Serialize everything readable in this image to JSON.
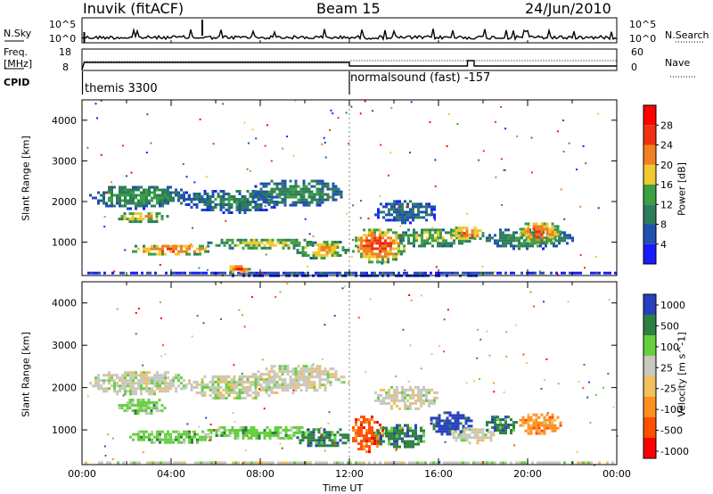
{
  "header": {
    "station": "Inuvik (fitACF)",
    "beam": "Beam 15",
    "date": "24/Jun/2010"
  },
  "summary": {
    "nsky_label": "N.Sky",
    "nsearch_label": "N.Search",
    "freq_label": "Freq.",
    "freq_unit": "[MHz]",
    "nave_label": "Nave",
    "cpid_label": "CPID",
    "nsky_ticks": [
      "10^5",
      "10^0"
    ],
    "nsearch_ticks": [
      "10^5",
      "10^0"
    ],
    "freq_ticks": [
      "18",
      "8"
    ],
    "nave_ticks": [
      "60",
      "0"
    ],
    "cpid_segments": [
      {
        "label": "themis 3300",
        "start": 0
      },
      {
        "label": "normalsound (fast) -157",
        "start": 12.0
      }
    ]
  },
  "colors": {
    "power": [
      "#1a1aff",
      "#2050b0",
      "#2e7d5a",
      "#3aa040",
      "#f0c830",
      "#f08020",
      "#f03010",
      "#ff0000"
    ],
    "velocity": [
      "#ff0000",
      "#ff5000",
      "#ff9020",
      "#f0c060",
      "#c8c8c0",
      "#66d040",
      "#2e8040",
      "#2840c0"
    ]
  },
  "chart_data": [
    {
      "type": "heatmap",
      "name": "power",
      "xlabel": "",
      "ylabel": "Slant Range [km]",
      "x_range": [
        0,
        24
      ],
      "y_range": [
        180,
        4500
      ],
      "y_ticks": [
        "4000",
        "3000",
        "2000",
        "1000"
      ],
      "colorbar_label": "Power [dB]",
      "colorbar_ticks": [
        "28",
        "24",
        "20",
        "16",
        "12",
        "8",
        "4"
      ],
      "colorbar_range": [
        0,
        32
      ],
      "blobs": [
        {
          "t": [
            0.2,
            4.8
          ],
          "r": [
            1850,
            2450
          ],
          "v": 13
        },
        {
          "t": [
            1.5,
            3.8
          ],
          "r": [
            1500,
            1800
          ],
          "v": 20
        },
        {
          "t": [
            4.5,
            9.0
          ],
          "r": [
            1750,
            2350
          ],
          "v": 11
        },
        {
          "t": [
            7.5,
            11.8
          ],
          "r": [
            1900,
            2600
          ],
          "v": 12
        },
        {
          "t": [
            2.0,
            6.0
          ],
          "r": [
            700,
            1000
          ],
          "v": 24
        },
        {
          "t": [
            5.5,
            10.5
          ],
          "r": [
            850,
            1150
          ],
          "v": 17
        },
        {
          "t": [
            9.5,
            12.0
          ],
          "r": [
            600,
            1100
          ],
          "v": 20
        },
        {
          "t": [
            12.0,
            14.5
          ],
          "r": [
            500,
            1400
          ],
          "v": 26
        },
        {
          "t": [
            13.0,
            16.0
          ],
          "r": [
            1500,
            2100
          ],
          "v": 9
        },
        {
          "t": [
            14.0,
            17.5
          ],
          "r": [
            900,
            1400
          ],
          "v": 16
        },
        {
          "t": [
            16.5,
            18.0
          ],
          "r": [
            1050,
            1450
          ],
          "v": 24
        },
        {
          "t": [
            18.0,
            22.0
          ],
          "r": [
            850,
            1400
          ],
          "v": 13
        },
        {
          "t": [
            19.5,
            21.5
          ],
          "r": [
            1000,
            1550
          ],
          "v": 25
        },
        {
          "t": [
            0,
            24
          ],
          "r": [
            200,
            340
          ],
          "v": 6
        },
        {
          "t": [
            6.5,
            7.5
          ],
          "r": [
            250,
            500
          ],
          "v": 27
        }
      ]
    },
    {
      "type": "heatmap",
      "name": "velocity",
      "xlabel": "Time UT",
      "ylabel": "Slant Range [km]",
      "x_range": [
        0,
        24
      ],
      "x_ticks": [
        "00:00",
        "04:00",
        "08:00",
        "12:00",
        "16:00",
        "20:00",
        "00:00"
      ],
      "y_range": [
        180,
        4500
      ],
      "y_ticks": [
        "4000",
        "3000",
        "2000",
        "1000"
      ],
      "colorbar_label": "Velocity [m s^-1]",
      "colorbar_ticks": [
        "1000",
        "500",
        "100",
        "25",
        "-25",
        "-100",
        "-500",
        "-1000"
      ],
      "blobs": [
        {
          "t": [
            0.2,
            4.8
          ],
          "r": [
            1850,
            2450
          ],
          "c": 4
        },
        {
          "t": [
            4.5,
            9.0
          ],
          "r": [
            1750,
            2350
          ],
          "c": 4
        },
        {
          "t": [
            7.5,
            11.8
          ],
          "r": [
            1900,
            2600
          ],
          "c": 4
        },
        {
          "t": [
            1.5,
            3.8
          ],
          "r": [
            1400,
            1800
          ],
          "c": 5
        },
        {
          "t": [
            2.0,
            6.0
          ],
          "r": [
            700,
            1050
          ],
          "c": 5
        },
        {
          "t": [
            5.5,
            10.5
          ],
          "r": [
            800,
            1150
          ],
          "c": 5
        },
        {
          "t": [
            9.5,
            12.0
          ],
          "r": [
            600,
            1100
          ],
          "c": 6
        },
        {
          "t": [
            12.0,
            13.5
          ],
          "r": [
            500,
            1400
          ],
          "c": 1
        },
        {
          "t": [
            13.0,
            15.5
          ],
          "r": [
            600,
            1200
          ],
          "c": 6
        },
        {
          "t": [
            13.0,
            16.0
          ],
          "r": [
            1500,
            2100
          ],
          "c": 4
        },
        {
          "t": [
            15.5,
            17.5
          ],
          "r": [
            900,
            1500
          ],
          "c": 7
        },
        {
          "t": [
            16.5,
            18.5
          ],
          "r": [
            700,
            1100
          ],
          "c": 4
        },
        {
          "t": [
            18.0,
            19.5
          ],
          "r": [
            900,
            1400
          ],
          "c": 6
        },
        {
          "t": [
            19.5,
            21.5
          ],
          "r": [
            900,
            1450
          ],
          "c": 2
        },
        {
          "t": [
            0,
            24
          ],
          "r": [
            200,
            320
          ],
          "c": 4
        }
      ]
    }
  ]
}
